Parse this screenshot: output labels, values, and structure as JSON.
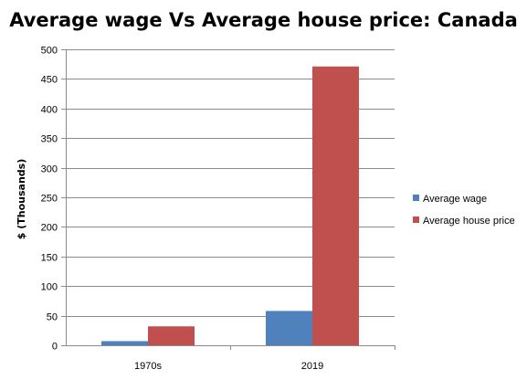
{
  "chart_data": {
    "type": "bar",
    "title": "Average wage Vs Average house price: Canada",
    "xlabel": "",
    "ylabel": "$ (Thousands)",
    "ylim": [
      0,
      500
    ],
    "yticks": [
      0,
      50,
      100,
      150,
      200,
      250,
      300,
      350,
      400,
      450,
      500
    ],
    "categories": [
      "1970s",
      "2019"
    ],
    "grid": true,
    "legend_position": "right",
    "series": [
      {
        "name": "Average wage",
        "values": [
          7,
          58
        ],
        "color": "#4F81BD"
      },
      {
        "name": "Average house price",
        "values": [
          32,
          471
        ],
        "color": "#C0504D"
      }
    ]
  }
}
